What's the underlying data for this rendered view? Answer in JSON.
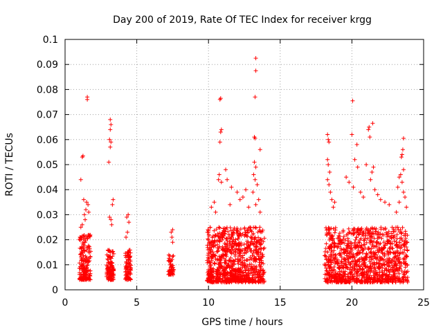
{
  "chart_data": {
    "type": "scatter",
    "title": "Day 200 of 2019, Rate Of TEC Index for receiver krgg",
    "xlabel": "GPS time / hours",
    "ylabel": "ROTI / TECUs",
    "xlim": [
      0,
      25
    ],
    "ylim": [
      0,
      0.1
    ],
    "xticks": [
      0,
      5,
      10,
      15,
      20,
      25
    ],
    "xtick_labels": [
      "0",
      "5",
      "10",
      "15",
      "20",
      "25"
    ],
    "yticks": [
      0,
      0.01,
      0.02,
      0.03,
      0.04,
      0.05,
      0.06,
      0.07,
      0.08,
      0.09,
      0.1
    ],
    "ytick_labels": [
      "0",
      "0.01",
      "0.02",
      "0.03",
      "0.04",
      "0.05",
      "0.06",
      "0.07",
      "0.08",
      "0.09",
      "0.1"
    ],
    "grid": true,
    "marker": "+",
    "color": "#ff0000",
    "clusters": [
      {
        "x_range": [
          1.0,
          1.8
        ],
        "y_range": [
          0.004,
          0.022
        ],
        "count": 180
      },
      {
        "x_range": [
          2.9,
          3.4
        ],
        "y_range": [
          0.004,
          0.016
        ],
        "count": 120
      },
      {
        "x_range": [
          4.2,
          4.6
        ],
        "y_range": [
          0.004,
          0.016
        ],
        "count": 90
      },
      {
        "x_range": [
          7.2,
          7.6
        ],
        "y_range": [
          0.006,
          0.014
        ],
        "count": 60
      },
      {
        "x_range": [
          9.9,
          13.9
        ],
        "y_range": [
          0.003,
          0.025
        ],
        "count": 900
      },
      {
        "x_range": [
          18.1,
          23.9
        ],
        "y_range": [
          0.003,
          0.025
        ],
        "count": 1100
      }
    ],
    "points": [
      [
        1.1,
        0.044
      ],
      [
        1.2,
        0.053
      ],
      [
        1.25,
        0.0535
      ],
      [
        1.55,
        0.077
      ],
      [
        1.55,
        0.076
      ],
      [
        1.3,
        0.036
      ],
      [
        1.5,
        0.035
      ],
      [
        1.6,
        0.034
      ],
      [
        1.4,
        0.028
      ],
      [
        1.2,
        0.026
      ],
      [
        1.1,
        0.025
      ],
      [
        1.45,
        0.032
      ],
      [
        1.65,
        0.031
      ],
      [
        1.35,
        0.03
      ],
      [
        3.15,
        0.068
      ],
      [
        3.2,
        0.066
      ],
      [
        3.15,
        0.064
      ],
      [
        3.1,
        0.06
      ],
      [
        3.2,
        0.059
      ],
      [
        3.15,
        0.057
      ],
      [
        3.05,
        0.051
      ],
      [
        3.35,
        0.036
      ],
      [
        3.3,
        0.034
      ],
      [
        3.1,
        0.029
      ],
      [
        3.2,
        0.028
      ],
      [
        3.25,
        0.026
      ],
      [
        4.4,
        0.03
      ],
      [
        4.3,
        0.029
      ],
      [
        4.45,
        0.027
      ],
      [
        4.35,
        0.023
      ],
      [
        4.25,
        0.021
      ],
      [
        7.5,
        0.024
      ],
      [
        7.4,
        0.023
      ],
      [
        7.45,
        0.021
      ],
      [
        7.5,
        0.019
      ],
      [
        10.8,
        0.076
      ],
      [
        10.85,
        0.0765
      ],
      [
        10.9,
        0.064
      ],
      [
        10.85,
        0.063
      ],
      [
        10.8,
        0.059
      ],
      [
        10.75,
        0.046
      ],
      [
        10.7,
        0.044
      ],
      [
        10.9,
        0.043
      ],
      [
        11.2,
        0.048
      ],
      [
        11.3,
        0.044
      ],
      [
        11.6,
        0.041
      ],
      [
        12.0,
        0.039
      ],
      [
        12.4,
        0.037
      ],
      [
        12.6,
        0.04
      ],
      [
        12.2,
        0.036
      ],
      [
        10.2,
        0.033
      ],
      [
        10.4,
        0.035
      ],
      [
        10.5,
        0.031
      ],
      [
        11.5,
        0.034
      ],
      [
        12.8,
        0.033
      ],
      [
        13.3,
        0.0925
      ],
      [
        13.3,
        0.0875
      ],
      [
        13.25,
        0.077
      ],
      [
        13.2,
        0.061
      ],
      [
        13.25,
        0.0605
      ],
      [
        13.6,
        0.056
      ],
      [
        13.2,
        0.051
      ],
      [
        13.3,
        0.049
      ],
      [
        13.15,
        0.046
      ],
      [
        13.25,
        0.044
      ],
      [
        13.4,
        0.042
      ],
      [
        13.1,
        0.039
      ],
      [
        13.5,
        0.036
      ],
      [
        13.3,
        0.034
      ],
      [
        13.6,
        0.031
      ],
      [
        18.3,
        0.062
      ],
      [
        18.35,
        0.06
      ],
      [
        18.4,
        0.059
      ],
      [
        18.3,
        0.052
      ],
      [
        18.35,
        0.05
      ],
      [
        18.45,
        0.047
      ],
      [
        18.3,
        0.044
      ],
      [
        18.4,
        0.042
      ],
      [
        18.5,
        0.039
      ],
      [
        18.6,
        0.036
      ],
      [
        18.7,
        0.033
      ],
      [
        18.8,
        0.035
      ],
      [
        20.05,
        0.0755
      ],
      [
        20.0,
        0.062
      ],
      [
        20.35,
        0.058
      ],
      [
        20.2,
        0.052
      ],
      [
        20.4,
        0.049
      ],
      [
        19.6,
        0.045
      ],
      [
        19.8,
        0.043
      ],
      [
        20.1,
        0.041
      ],
      [
        20.6,
        0.039
      ],
      [
        20.8,
        0.037
      ],
      [
        21.2,
        0.065
      ],
      [
        21.15,
        0.064
      ],
      [
        21.25,
        0.061
      ],
      [
        21.45,
        0.0665
      ],
      [
        21.0,
        0.05
      ],
      [
        21.5,
        0.049
      ],
      [
        21.4,
        0.047
      ],
      [
        21.3,
        0.044
      ],
      [
        21.6,
        0.04
      ],
      [
        21.8,
        0.038
      ],
      [
        22.0,
        0.036
      ],
      [
        22.3,
        0.035
      ],
      [
        22.6,
        0.034
      ],
      [
        23.6,
        0.0605
      ],
      [
        23.55,
        0.056
      ],
      [
        23.5,
        0.054
      ],
      [
        23.45,
        0.053
      ],
      [
        23.6,
        0.048
      ],
      [
        23.4,
        0.046
      ],
      [
        23.3,
        0.045
      ],
      [
        23.5,
        0.043
      ],
      [
        23.2,
        0.041
      ],
      [
        23.6,
        0.039
      ],
      [
        23.7,
        0.037
      ],
      [
        23.3,
        0.035
      ],
      [
        23.8,
        0.033
      ],
      [
        23.1,
        0.031
      ]
    ]
  }
}
